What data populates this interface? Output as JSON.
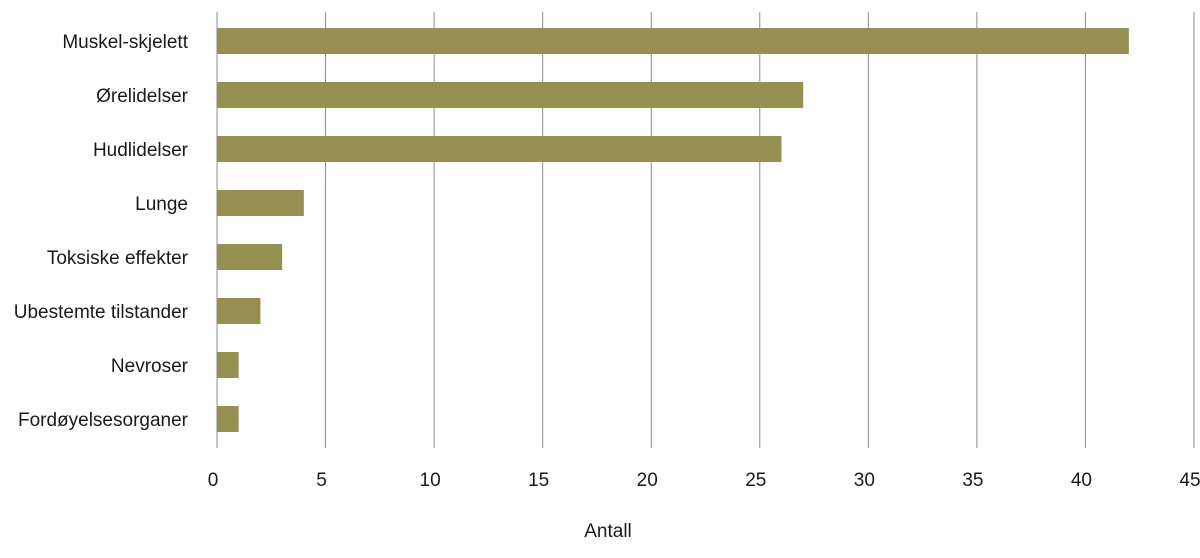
{
  "chart_data": {
    "type": "bar",
    "orientation": "horizontal",
    "categories": [
      "Muskel-skjelett",
      "Ørelidelser",
      "Hudlidelser",
      "Lunge",
      "Toksiske effekter",
      "Ubestemte tilstander",
      "Nevroser",
      "Fordøyelsesorganer"
    ],
    "values": [
      42,
      27,
      26,
      4,
      3,
      2,
      1,
      1
    ],
    "xlabel": "Antall",
    "ylabel": "",
    "xlim": [
      0,
      45
    ],
    "xticks": [
      "0",
      "5",
      "10",
      "15",
      "20",
      "25",
      "30",
      "35",
      "40",
      "45"
    ],
    "grid": "vertical",
    "colors": {
      "bar": "#968f52"
    }
  }
}
